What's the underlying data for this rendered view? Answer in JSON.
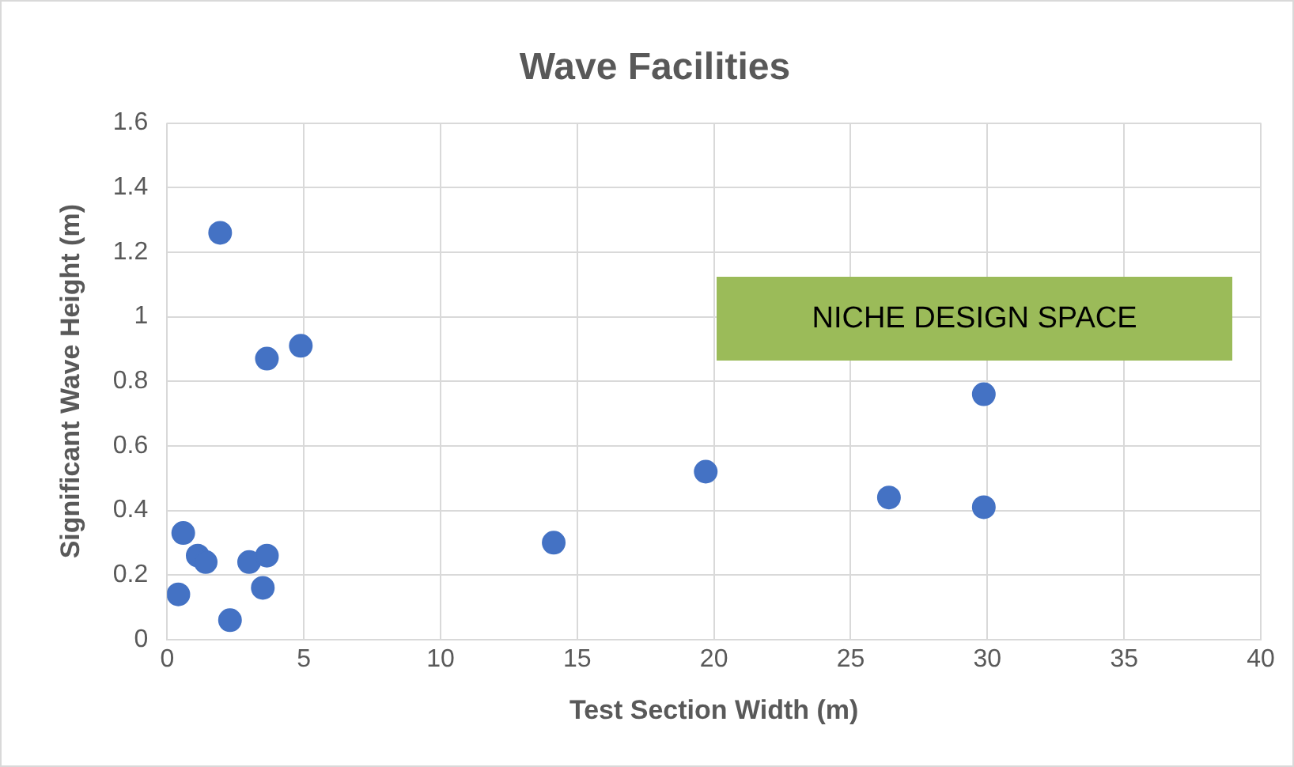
{
  "chart_data": {
    "type": "scatter",
    "title": "Wave Facilities",
    "xlabel": "Test Section Width (m)",
    "ylabel": "Significant Wave Height (m)",
    "x": [
      0.41,
      0.59,
      1.12,
      1.41,
      1.94,
      2.3,
      3.0,
      3.5,
      3.65,
      3.65,
      4.89,
      14.14,
      19.7,
      26.4,
      29.87,
      29.87
    ],
    "series": [
      {
        "color": "#4472c4",
        "values": [
          0.14,
          0.33,
          0.26,
          0.24,
          1.26,
          0.06,
          0.24,
          0.16,
          0.26,
          0.87,
          0.91,
          0.3,
          0.52,
          0.44,
          0.76,
          0.41
        ]
      }
    ],
    "xlim": [
      0,
      40
    ],
    "xticks": [
      0,
      5,
      10,
      15,
      20,
      25,
      30,
      35,
      40
    ],
    "ylim": [
      0,
      1.6
    ],
    "yticks": [
      0,
      {
        "value": 0.2,
        "label": "0.2"
      },
      {
        "value": 0.4,
        "label": "0.4"
      },
      {
        "value": 0.6,
        "label": "0.6"
      },
      {
        "value": 0.8,
        "label": "0.8"
      },
      1,
      {
        "value": 1.2,
        "label": "1.2"
      },
      {
        "value": 1.4,
        "label": "1.4"
      },
      {
        "value": 1.6,
        "label": "1.6"
      }
    ],
    "annotations": [
      "NICHE DESIGN SPACE"
    ],
    "grid": true,
    "legend": false,
    "marker": "circle"
  }
}
